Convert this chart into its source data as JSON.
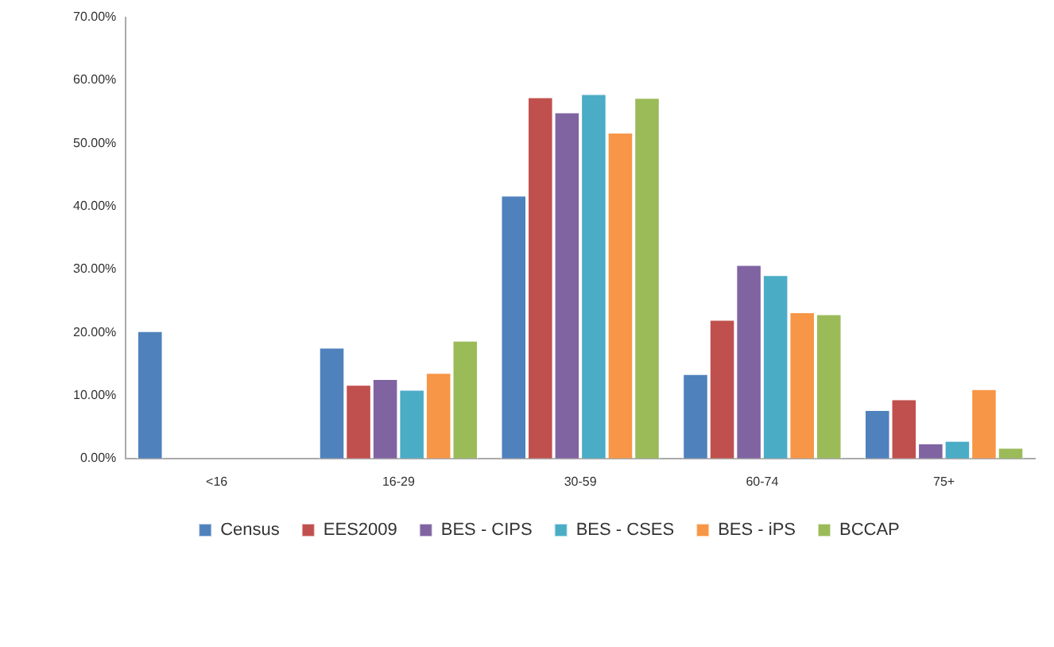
{
  "chart_data": {
    "type": "bar",
    "categories": [
      "<16",
      "16-29",
      "30-59",
      "60-74",
      "75+"
    ],
    "series": [
      {
        "name": "Census",
        "color": "#4f81bd",
        "values": [
          20.3,
          17.7,
          41.8,
          13.5,
          7.8
        ]
      },
      {
        "name": "EES2009",
        "color": "#c0504d",
        "values": [
          0,
          11.8,
          57.4,
          22.1,
          9.5
        ]
      },
      {
        "name": "BES - CIPS",
        "color": "#8064a2",
        "values": [
          0,
          12.7,
          55.0,
          30.8,
          2.5
        ]
      },
      {
        "name": "BES - CSES",
        "color": "#4bacc6",
        "values": [
          0,
          11.0,
          57.9,
          29.2,
          2.9
        ]
      },
      {
        "name": "BES - iPS",
        "color": "#f79646",
        "values": [
          0,
          13.7,
          51.8,
          23.3,
          11.1
        ]
      },
      {
        "name": "BCCAP",
        "color": "#9bbb59",
        "values": [
          0,
          18.8,
          57.3,
          23.0,
          1.8
        ]
      }
    ],
    "ylim": [
      0,
      70
    ],
    "yticks": [
      {
        "value": 0,
        "label": "0.00%"
      },
      {
        "value": 10,
        "label": "10.00%"
      },
      {
        "value": 20,
        "label": "20.00%"
      },
      {
        "value": 30,
        "label": "30.00%"
      },
      {
        "value": 40,
        "label": "40.00%"
      },
      {
        "value": 50,
        "label": "50.00%"
      },
      {
        "value": 60,
        "label": "60.00%"
      },
      {
        "value": 70,
        "label": "70.00%"
      }
    ],
    "grid": false,
    "legend": "bottom"
  }
}
